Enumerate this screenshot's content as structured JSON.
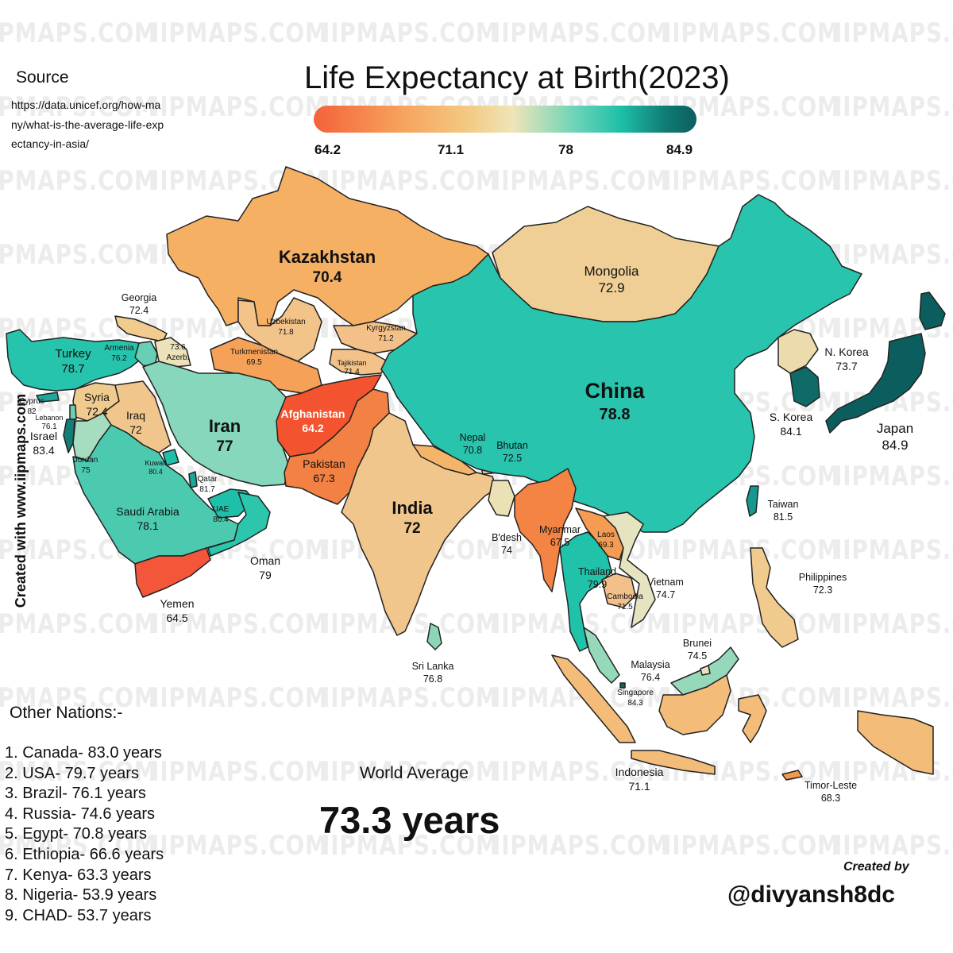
{
  "watermark": "IIPMAPS.COM",
  "title": "Life Expectancy at Birth(2023)",
  "legend": {
    "ticks": [
      "64.2",
      "71.1",
      "78",
      "84.9"
    ],
    "colors": [
      "#f4623a",
      "#f7a05a",
      "#efe5b8",
      "#1fc0a9",
      "#0c5e5e"
    ]
  },
  "source": {
    "label": "Source",
    "url": "https://data.unicef.org/how-many/what-is-the-average-life-expectancy-in-asia/"
  },
  "side_credit": "Created with www.iipmaps.com",
  "countries": [
    {
      "name": "Kazakhstan",
      "value": "70.4",
      "color": "#f6b064"
    },
    {
      "name": "Mongolia",
      "value": "72.9",
      "color": "#efcf96"
    },
    {
      "name": "Georgia",
      "value": "72.4",
      "color": "#f1cc8e"
    },
    {
      "name": "Uzbekistan",
      "value": "71.8",
      "color": "#f2c48a"
    },
    {
      "name": "Kyrgyzstan",
      "value": "71.2",
      "color": "#f2c088"
    },
    {
      "name": "Tajikistan",
      "value": "71.4",
      "color": "#f2c289"
    },
    {
      "name": "Turkmenistan",
      "value": "69.5",
      "color": "#f5a258"
    },
    {
      "name": "Turkey",
      "value": "78.7",
      "color": "#26c3ad"
    },
    {
      "name": "Armenia",
      "value": "76.2",
      "color": "#67d0b4"
    },
    {
      "name": "Azerb.",
      "value": "73.6",
      "color": "#ebe2b9"
    },
    {
      "name": "Cyprus",
      "value": "82",
      "color": "#1fa89a"
    },
    {
      "name": "Syria",
      "value": "72.4",
      "color": "#f0cb8e"
    },
    {
      "name": "Lebanon",
      "value": "76.1",
      "color": "#6ad0b4"
    },
    {
      "name": "Israel",
      "value": "83.4",
      "color": "#147e76"
    },
    {
      "name": "Iraq",
      "value": "72",
      "color": "#f1c68c"
    },
    {
      "name": "Iran",
      "value": "77",
      "color": "#86d7bb"
    },
    {
      "name": "Jordan",
      "value": "75",
      "color": "#a6dcc0"
    },
    {
      "name": "Kuwait",
      "value": "80.4",
      "color": "#1fc0a9"
    },
    {
      "name": "Qatar",
      "value": "81.7",
      "color": "#17a899"
    },
    {
      "name": "UAE",
      "value": "80.4",
      "color": "#1fc0a9"
    },
    {
      "name": "Saudi Arabia",
      "value": "78.1",
      "color": "#4ccab0"
    },
    {
      "name": "Oman",
      "value": "79",
      "color": "#2cc6ad"
    },
    {
      "name": "Yemen",
      "value": "64.5",
      "color": "#f4563a"
    },
    {
      "name": "Afghanistan",
      "value": "64.2",
      "color": "#f4532f"
    },
    {
      "name": "Pakistan",
      "value": "67.3",
      "color": "#f28143"
    },
    {
      "name": "India",
      "value": "72",
      "color": "#f1c68c"
    },
    {
      "name": "Nepal",
      "value": "70.8",
      "color": "#f4b56a"
    },
    {
      "name": "Bhutan",
      "value": "72.5",
      "color": "#f0cc90"
    },
    {
      "name": "B'desh",
      "value": "74",
      "color": "#ece0b5"
    },
    {
      "name": "Sri Lanka",
      "value": "76.8",
      "color": "#8cd6b8"
    },
    {
      "name": "China",
      "value": "78.8",
      "color": "#28c4ad"
    },
    {
      "name": "N. Korea",
      "value": "73.7",
      "color": "#ecdcad"
    },
    {
      "name": "S. Korea",
      "value": "84.1",
      "color": "#0f6b68"
    },
    {
      "name": "Japan",
      "value": "84.9",
      "color": "#0c5e5e"
    },
    {
      "name": "Taiwan",
      "value": "81.5",
      "color": "#16988f"
    },
    {
      "name": "Myanmar",
      "value": "67.5",
      "color": "#f38443"
    },
    {
      "name": "Laos",
      "value": "69.3",
      "color": "#f49d52"
    },
    {
      "name": "Thailand",
      "value": "79.9",
      "color": "#21c2aa"
    },
    {
      "name": "Cambodia",
      "value": "71.5",
      "color": "#f2c189"
    },
    {
      "name": "Vietnam",
      "value": "74.7",
      "color": "#e6e4c0"
    },
    {
      "name": "Philippines",
      "value": "72.3",
      "color": "#f1ca8d"
    },
    {
      "name": "Brunei",
      "value": "74.5",
      "color": "#e9e2bd"
    },
    {
      "name": "Malaysia",
      "value": "76.4",
      "color": "#96d8ba"
    },
    {
      "name": "Singapore",
      "value": "84.3",
      "color": "#0d6563"
    },
    {
      "name": "Indonesia",
      "value": "71.1",
      "color": "#f3bc79"
    },
    {
      "name": "Timor-Leste",
      "value": "68.3",
      "color": "#f49a50"
    }
  ],
  "others": {
    "title": "Other Nations:-",
    "items": [
      "1. Canada- 83.0 years",
      "2. USA- 79.7 years",
      "3. Brazil- 76.1 years",
      "4. Russia- 74.6 years",
      "5. Egypt- 70.8 years",
      "6. Ethiopia- 66.6 years",
      "7. Kenya- 63.3 years",
      "8. Nigeria- 53.9 years",
      "9. CHAD- 53.7 years"
    ]
  },
  "world_average": {
    "label": "World Average",
    "value": "73.3 years"
  },
  "credit": {
    "label": "Created by",
    "handle": "@divyansh8dc"
  }
}
